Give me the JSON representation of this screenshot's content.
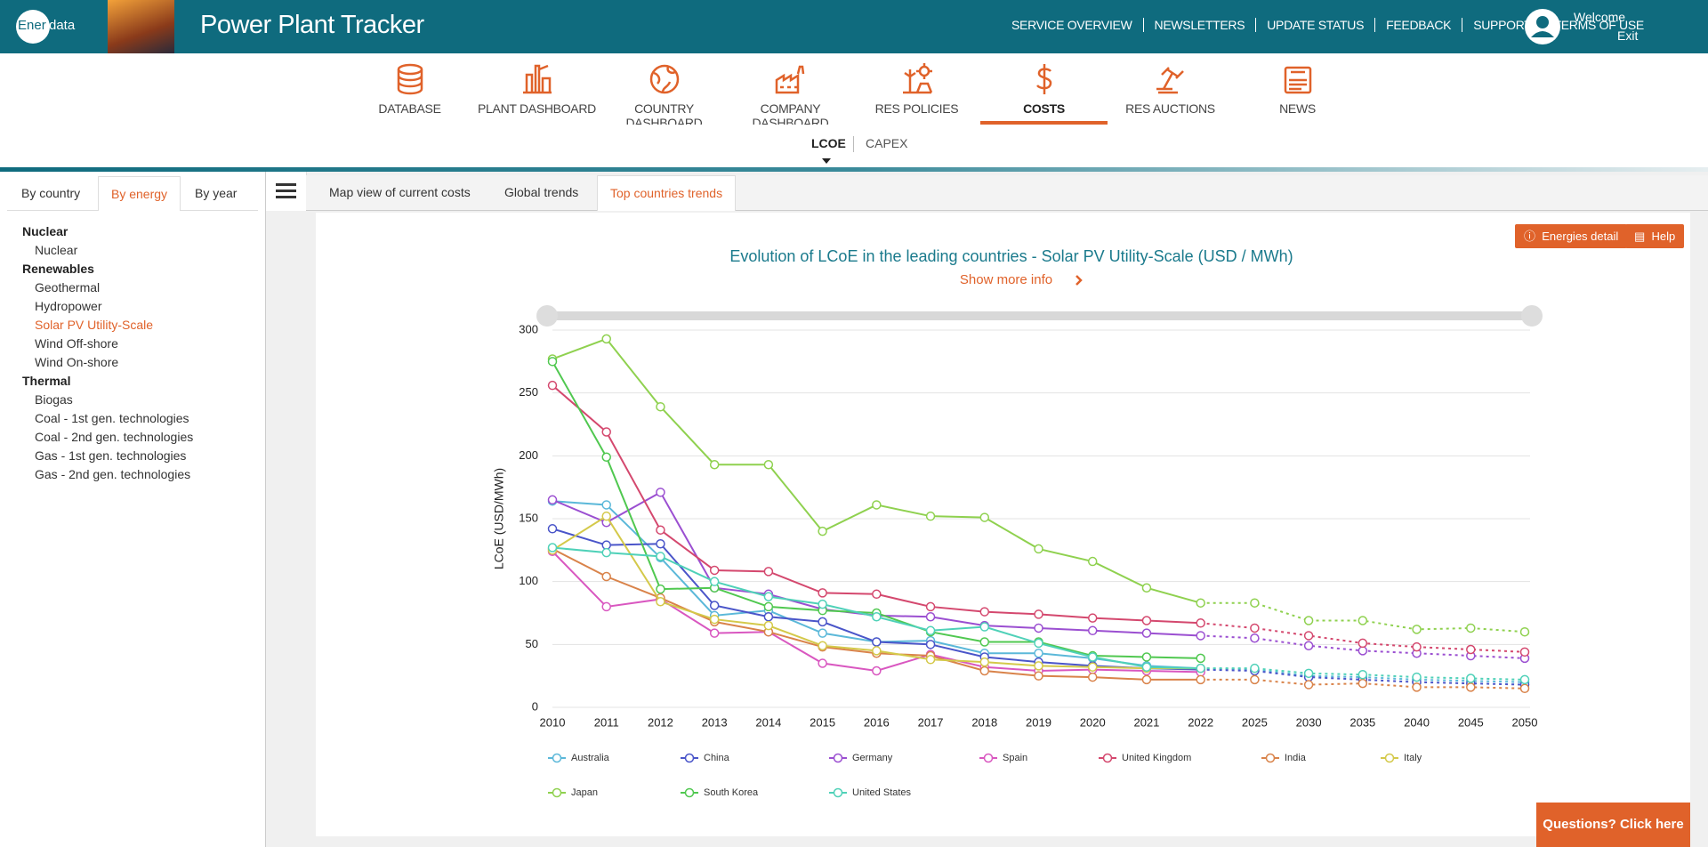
{
  "header": {
    "logo_left": "Ener",
    "logo_right": "data",
    "title": "Power Plant Tracker",
    "links": [
      "SERVICE OVERVIEW",
      "NEWSLETTERS",
      "UPDATE STATUS",
      "FEEDBACK",
      "SUPPORT",
      "TERMS OF USE"
    ],
    "welcome": "Welcome",
    "exit": "Exit"
  },
  "nav": [
    {
      "label": "DATABASE"
    },
    {
      "label": "PLANT DASHBOARD"
    },
    {
      "label": "COUNTRY DASHBOARD"
    },
    {
      "label": "COMPANY DASHBOARD"
    },
    {
      "label": "RES POLICIES"
    },
    {
      "label": "COSTS",
      "active": true
    },
    {
      "label": "RES AUCTIONS"
    },
    {
      "label": "NEWS"
    }
  ],
  "subnav": [
    {
      "label": "LCOE",
      "active": true
    },
    {
      "label": "CAPEX"
    }
  ],
  "sidebar": {
    "tabs": [
      {
        "label": "By country"
      },
      {
        "label": "By energy",
        "active": true
      },
      {
        "label": "By year"
      }
    ],
    "groups": [
      {
        "title": "Nuclear",
        "items": [
          {
            "label": "Nuclear"
          }
        ]
      },
      {
        "title": "Renewables",
        "items": [
          {
            "label": "Geothermal"
          },
          {
            "label": "Hydropower"
          },
          {
            "label": "Solar PV Utility-Scale",
            "active": true
          },
          {
            "label": "Wind Off-shore"
          },
          {
            "label": "Wind On-shore"
          }
        ]
      },
      {
        "title": "Thermal",
        "items": [
          {
            "label": "Biogas"
          },
          {
            "label": "Coal - 1st gen. technologies"
          },
          {
            "label": "Coal - 2nd gen. technologies"
          },
          {
            "label": "Gas - 1st gen. technologies"
          },
          {
            "label": "Gas - 2nd gen. technologies"
          }
        ]
      }
    ]
  },
  "tabs": [
    {
      "label": "Map view of current costs"
    },
    {
      "label": "Global trends"
    },
    {
      "label": "Top countries trends",
      "active": true
    }
  ],
  "buttons": {
    "energies_detail": "Energies detail",
    "help": "Help"
  },
  "show_more": "Show more info",
  "questions": "Questions? Click here",
  "chart_data": {
    "type": "line",
    "title": "Evolution of LCoE in the leading countries - Solar PV Utility-Scale (USD / MWh)",
    "y_label": "LCoE (USD/MWh)",
    "categories": [
      "2010",
      "2011",
      "2012",
      "2013",
      "2014",
      "2015",
      "2016",
      "2017",
      "2018",
      "2019",
      "2020",
      "2021",
      "2022",
      "2025",
      "2030",
      "2035",
      "2040",
      "2045",
      "2050"
    ],
    "projection_from": "2022",
    "ylim": [
      0,
      300
    ],
    "yticks": [
      0,
      50,
      100,
      150,
      200,
      250,
      300
    ],
    "grid": true,
    "series": [
      {
        "name": "Australia",
        "color": "#5bb8d9",
        "values": [
          164,
          161,
          119,
          73,
          77,
          59,
          52,
          53,
          43,
          43,
          39,
          33,
          31,
          30,
          25,
          24,
          22,
          21,
          20
        ]
      },
      {
        "name": "China",
        "color": "#4a55c9",
        "values": [
          142,
          129,
          130,
          81,
          72,
          68,
          52,
          50,
          40,
          36,
          33,
          31,
          30,
          29,
          24,
          22,
          20,
          19,
          18
        ]
      },
      {
        "name": "Germany",
        "color": "#9b4fd1",
        "values": [
          165,
          147,
          171,
          95,
          90,
          78,
          73,
          72,
          65,
          63,
          61,
          59,
          57,
          55,
          49,
          45,
          43,
          41,
          39
        ]
      },
      {
        "name": "Spain",
        "color": "#d957c0",
        "values": [
          124,
          80,
          86,
          59,
          60,
          35,
          29,
          42,
          32,
          29,
          30,
          29,
          28,
          null,
          null,
          null,
          null,
          null,
          null
        ]
      },
      {
        "name": "United Kingdom",
        "color": "#d4486e",
        "values": [
          256,
          219,
          141,
          109,
          108,
          91,
          90,
          80,
          76,
          74,
          71,
          69,
          67,
          63,
          57,
          51,
          48,
          46,
          44
        ]
      },
      {
        "name": "India",
        "color": "#d9834a",
        "values": [
          126,
          104,
          87,
          68,
          60,
          48,
          43,
          41,
          29,
          25,
          24,
          22,
          22,
          22,
          18,
          19,
          16,
          16,
          15
        ]
      },
      {
        "name": "Italy",
        "color": "#d4c94a",
        "values": [
          125,
          152,
          84,
          70,
          65,
          49,
          45,
          38,
          36,
          33,
          32,
          31,
          31,
          null,
          null,
          null,
          null,
          null,
          null
        ]
      },
      {
        "name": "Japan",
        "color": "#8fd14f",
        "values": [
          277,
          293,
          239,
          193,
          193,
          140,
          161,
          152,
          151,
          126,
          116,
          95,
          83,
          83,
          69,
          69,
          62,
          63,
          60
        ]
      },
      {
        "name": "South Korea",
        "color": "#50c850",
        "values": [
          275,
          199,
          94,
          95,
          80,
          77,
          75,
          60,
          52,
          52,
          41,
          40,
          39,
          null,
          null,
          null,
          null,
          null,
          null
        ]
      },
      {
        "name": "United States",
        "color": "#4fd1b8",
        "values": [
          127,
          123,
          120,
          100,
          88,
          82,
          72,
          61,
          64,
          51,
          40,
          32,
          31,
          31,
          27,
          26,
          24,
          23,
          22
        ]
      }
    ]
  }
}
